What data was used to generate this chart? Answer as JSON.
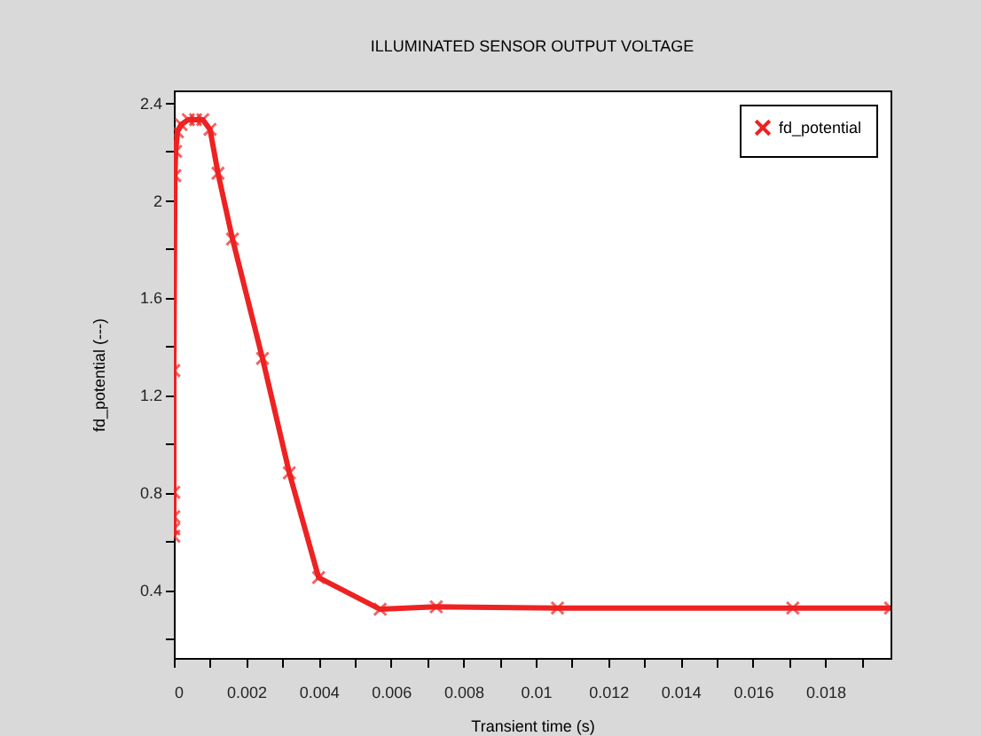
{
  "chart_data": {
    "type": "line",
    "title": "ILLUMINATED SENSOR OUTPUT VOLTAGE",
    "xlabel": "Transient time (s)",
    "ylabel": "fd_potential (---)",
    "x": [
      0,
      0,
      0,
      0,
      0,
      3e-05,
      5e-05,
      0.0001,
      0.0002,
      0.0004,
      0.0006,
      0.0008,
      0.001,
      0.00122,
      0.00162,
      0.00245,
      0.00319,
      0.004,
      0.0057,
      0.00725,
      0.0106,
      0.0171,
      0.0198
    ],
    "series": [
      {
        "name": "fd_potential",
        "color": "#ee2222",
        "values": [
          0.62,
          0.65,
          0.7,
          0.8,
          1.3,
          2.1,
          2.2,
          2.28,
          2.31,
          2.33,
          2.33,
          2.33,
          2.29,
          2.11,
          1.84,
          1.35,
          0.88,
          0.45,
          0.32,
          0.33,
          0.325,
          0.325,
          0.325
        ]
      }
    ],
    "xlim": [
      0,
      0.0198
    ],
    "ylim": [
      0.12,
      2.45
    ],
    "xticks": [
      0,
      {
        "value": 0.001,
        "label": null
      },
      0.002,
      {
        "value": 0.003,
        "label": null
      },
      0.004,
      {
        "value": 0.005,
        "label": null
      },
      0.006,
      {
        "value": 0.007,
        "label": null
      },
      0.008,
      {
        "value": 0.009,
        "label": null
      },
      0.01,
      {
        "value": 0.011,
        "label": null
      },
      0.012,
      {
        "value": 0.013,
        "label": null
      },
      0.014,
      {
        "value": 0.015,
        "label": null
      },
      0.016,
      {
        "value": 0.017,
        "label": null
      },
      0.018,
      {
        "value": 0.019,
        "label": null
      }
    ],
    "yticks": [
      {
        "value": 0.2,
        "label": null
      },
      0.4,
      {
        "value": 0.6,
        "label": null
      },
      0.8,
      {
        "value": 1.0,
        "label": null
      },
      1.2,
      {
        "value": 1.4,
        "label": null
      },
      1.6,
      {
        "value": 1.8,
        "label": null
      },
      2,
      {
        "value": 2.2,
        "label": null
      },
      2.4
    ],
    "grid": false,
    "legend": "top right",
    "marker": "cross",
    "line_style": "solid"
  }
}
